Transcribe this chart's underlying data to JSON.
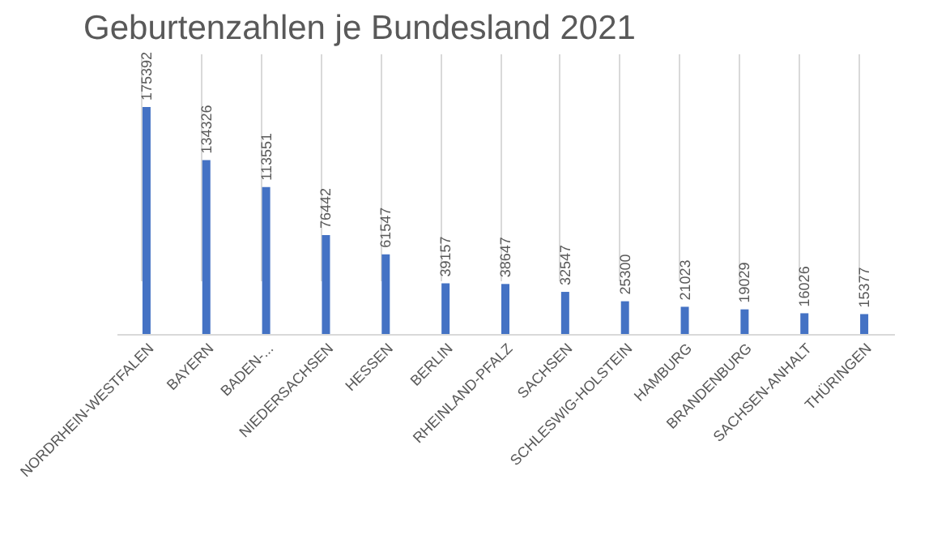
{
  "chart_data": {
    "type": "bar",
    "title": "Geburtenzahlen je Bundesland 2021",
    "categories": [
      "NORDRHEIN-WESTFALEN",
      "BAYERN",
      "BADEN-...",
      "NIEDERSACHSEN",
      "HESSEN",
      "BERLIN",
      "RHEINLAND-PFALZ",
      "SACHSEN",
      "SCHLESWIG-HOLSTEIN",
      "HAMBURG",
      "BRANDENBURG",
      "SACHSEN-ANHALT",
      "THÜRINGEN"
    ],
    "values": [
      175392,
      134326,
      113551,
      76442,
      61547,
      39157,
      38647,
      32547,
      25300,
      21023,
      19029,
      16026,
      15377
    ],
    "color": "#4472c4",
    "data_labels": true,
    "grid": "x"
  }
}
